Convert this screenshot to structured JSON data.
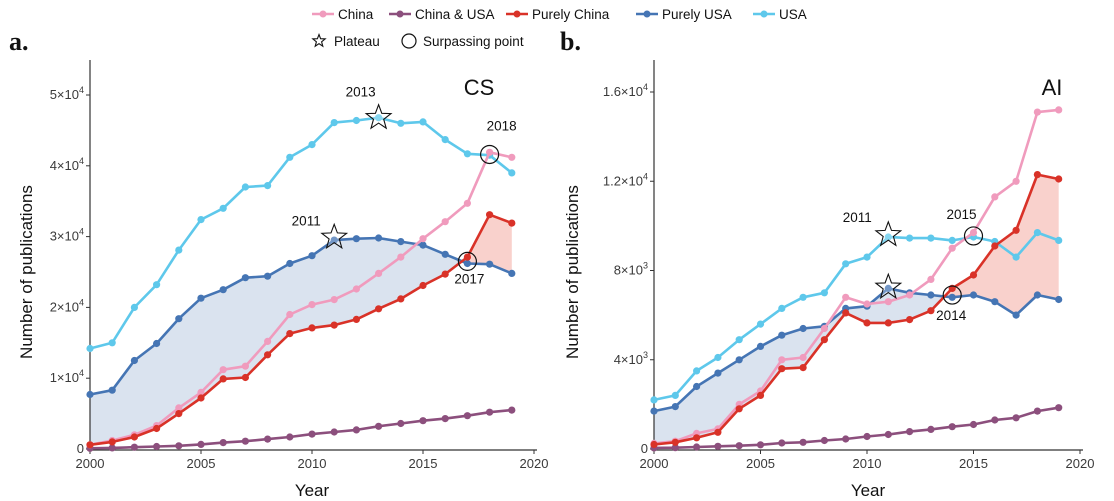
{
  "legend": {
    "series": [
      {
        "name": "China",
        "color": "#f09bbd"
      },
      {
        "name": "China & USA",
        "color": "#8c4f7d"
      },
      {
        "name": "Purely China",
        "color": "#d93228"
      },
      {
        "name": "Purely USA",
        "color": "#4575b4"
      },
      {
        "name": "USA",
        "color": "#5ec8eb"
      }
    ],
    "markers": [
      {
        "name": "Plateau",
        "icon": "star-icon"
      },
      {
        "name": "Surpassing point",
        "icon": "circle-icon"
      }
    ]
  },
  "colors": {
    "shade_usa_lead": "#dae3ef",
    "shade_china_lead": "#f9d1cc",
    "axis": "#333333"
  },
  "chart_data": [
    {
      "type": "line",
      "panel_label": "a.",
      "title": "CS",
      "xlabel": "Year",
      "ylabel": "Number of publications",
      "xlim": [
        2000,
        2020
      ],
      "ylim": [
        0,
        52000
      ],
      "xticks": [
        "2000",
        "2005",
        "2010",
        "2015",
        "2020"
      ],
      "yticks": [
        {
          "value": 0,
          "base": "0",
          "exp": ""
        },
        {
          "value": 10000,
          "base": "1×10",
          "exp": "4"
        },
        {
          "value": 20000,
          "base": "2×10",
          "exp": "4"
        },
        {
          "value": 30000,
          "base": "3×10",
          "exp": "4"
        },
        {
          "value": 40000,
          "base": "4×10",
          "exp": "4"
        },
        {
          "value": 50000,
          "base": "5×10",
          "exp": "4"
        }
      ],
      "x": [
        2000,
        2001,
        2002,
        2003,
        2004,
        2005,
        2006,
        2007,
        2008,
        2009,
        2010,
        2011,
        2012,
        2013,
        2014,
        2015,
        2016,
        2017,
        2018,
        2019
      ],
      "series": [
        {
          "name": "USA",
          "values": [
            14200,
            15000,
            20000,
            23200,
            28100,
            32400,
            34000,
            37000,
            37200,
            41200,
            43000,
            46100,
            46400,
            46800,
            46000,
            46200,
            43700,
            41700,
            41500,
            39000
          ]
        },
        {
          "name": "Purely USA",
          "values": [
            7700,
            8300,
            12500,
            14900,
            18400,
            21300,
            22500,
            24200,
            24400,
            26200,
            27300,
            29500,
            29700,
            29800,
            29300,
            28800,
            27500,
            26200,
            26100,
            24800
          ]
        },
        {
          "name": "China",
          "values": [
            600,
            1200,
            2000,
            3300,
            5800,
            8000,
            11200,
            11700,
            15200,
            19000,
            20400,
            21100,
            22600,
            24800,
            27100,
            29700,
            32100,
            34700,
            41900,
            41200
          ]
        },
        {
          "name": "Purely China",
          "values": [
            600,
            1000,
            1700,
            2900,
            5000,
            7200,
            9900,
            10100,
            13300,
            16300,
            17100,
            17500,
            18300,
            19800,
            21200,
            23100,
            24700,
            27100,
            33100,
            31900
          ]
        },
        {
          "name": "China & USA",
          "values": [
            100,
            150,
            250,
            350,
            450,
            650,
            900,
            1100,
            1400,
            1700,
            2100,
            2400,
            2700,
            3200,
            3600,
            4000,
            4300,
            4700,
            5200,
            5500
          ]
        }
      ],
      "annotations": [
        {
          "kind": "plateau",
          "label": "2013",
          "year": 2013,
          "value": 46800
        },
        {
          "kind": "plateau",
          "label": "2011",
          "year": 2011,
          "value": 29900
        },
        {
          "kind": "surpass",
          "label": "2018",
          "year": 2018,
          "value": 41600
        },
        {
          "kind": "surpass",
          "label": "2017",
          "year": 2017,
          "value": 26500
        }
      ]
    },
    {
      "type": "line",
      "panel_label": "b.",
      "title": "AI",
      "xlabel": "Year",
      "ylabel": "Number of publications",
      "xlim": [
        2000,
        2020
      ],
      "ylim": [
        0,
        16500
      ],
      "xticks": [
        "2000",
        "2005",
        "2010",
        "2015",
        "2020"
      ],
      "yticks": [
        {
          "value": 0,
          "base": "0",
          "exp": ""
        },
        {
          "value": 4000,
          "base": "4×10",
          "exp": "3"
        },
        {
          "value": 8000,
          "base": "8×10",
          "exp": "3"
        },
        {
          "value": 12000,
          "base": "1.2×10",
          "exp": "4"
        },
        {
          "value": 16000,
          "base": "1.6×10",
          "exp": "4"
        }
      ],
      "x": [
        2000,
        2001,
        2002,
        2003,
        2004,
        2005,
        2006,
        2007,
        2008,
        2009,
        2010,
        2011,
        2012,
        2013,
        2014,
        2015,
        2016,
        2017,
        2018,
        2019
      ],
      "series": [
        {
          "name": "USA",
          "values": [
            2200,
            2400,
            3500,
            4100,
            4900,
            5600,
            6300,
            6800,
            7000,
            8300,
            8600,
            9500,
            9450,
            9450,
            9350,
            9500,
            9300,
            8600,
            9700,
            9350
          ]
        },
        {
          "name": "Purely USA",
          "values": [
            1700,
            1900,
            2800,
            3400,
            4000,
            4600,
            5100,
            5400,
            5500,
            6300,
            6400,
            7200,
            7000,
            6900,
            6800,
            6900,
            6600,
            6000,
            6900,
            6700
          ]
        },
        {
          "name": "China",
          "values": [
            250,
            350,
            700,
            900,
            2000,
            2600,
            4000,
            4100,
            5400,
            6800,
            6500,
            6600,
            6900,
            7600,
            9000,
            9700,
            11300,
            12000,
            15100,
            15200
          ]
        },
        {
          "name": "Purely China",
          "values": [
            200,
            300,
            500,
            750,
            1800,
            2400,
            3600,
            3650,
            4900,
            6100,
            5650,
            5650,
            5800,
            6200,
            7200,
            7800,
            9100,
            9800,
            12300,
            12100
          ]
        },
        {
          "name": "China & USA",
          "values": [
            50,
            60,
            90,
            120,
            150,
            190,
            270,
            300,
            380,
            450,
            560,
            650,
            780,
            880,
            1000,
            1100,
            1300,
            1400,
            1700,
            1850
          ]
        }
      ],
      "annotations": [
        {
          "kind": "plateau",
          "label": "2011",
          "year": 2011,
          "value": 9600
        },
        {
          "kind": "plateau",
          "label": "",
          "year": 2011,
          "value": 7250
        },
        {
          "kind": "surpass",
          "label": "2015",
          "year": 2015,
          "value": 9550
        },
        {
          "kind": "surpass",
          "label": "2014",
          "year": 2014,
          "value": 6900
        }
      ]
    }
  ]
}
